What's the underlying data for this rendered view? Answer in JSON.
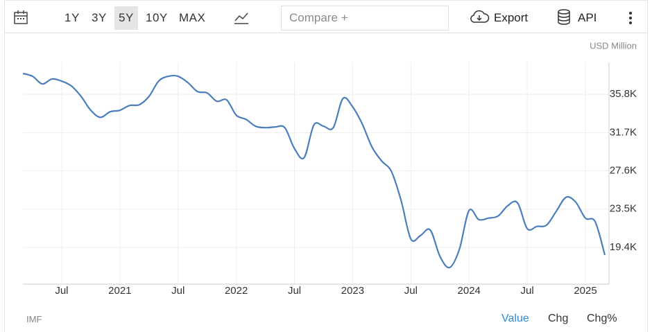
{
  "toolbar": {
    "ranges": [
      "1Y",
      "3Y",
      "5Y",
      "10Y",
      "MAX"
    ],
    "active_range_index": 2,
    "compare": "Compare +",
    "export": "Export",
    "api": "API"
  },
  "chart_data": {
    "type": "line",
    "unit": "USD Million",
    "categories": [
      null,
      null,
      null,
      null,
      "Jul",
      null,
      null,
      null,
      null,
      null,
      "2021",
      null,
      null,
      null,
      null,
      null,
      "Jul",
      null,
      null,
      null,
      null,
      null,
      "2022",
      null,
      null,
      null,
      null,
      null,
      "Jul",
      null,
      null,
      null,
      null,
      null,
      "2023",
      null,
      null,
      null,
      null,
      null,
      "Jul",
      null,
      null,
      null,
      null,
      null,
      "2024",
      null,
      null,
      null,
      null,
      null,
      "Jul",
      null,
      null,
      null,
      null,
      null,
      "2025",
      null,
      null
    ],
    "series": [
      {
        "name": "Value",
        "color": "#4a7ebb",
        "values": [
          38040,
          37740,
          36920,
          37450,
          37220,
          36700,
          35580,
          34090,
          33340,
          33940,
          34090,
          34610,
          34690,
          35580,
          37220,
          37740,
          37740,
          37070,
          36100,
          35950,
          35060,
          35210,
          33570,
          33120,
          32380,
          32230,
          32300,
          32230,
          29990,
          29020,
          32520,
          32380,
          32230,
          35360,
          34460,
          32600,
          30140,
          28650,
          27530,
          24400,
          20290,
          20670,
          21260,
          18430,
          17240,
          19180,
          23350,
          22380,
          22530,
          22760,
          23870,
          24170,
          21410,
          21640,
          21790,
          23280,
          24770,
          24250,
          22530,
          22160,
          18580
        ]
      }
    ],
    "ylim": [
      15450,
      39230
    ],
    "yticks": [
      {
        "value": 19400,
        "label": "19.4K"
      },
      {
        "value": 23500,
        "label": "23.5K"
      },
      {
        "value": 27600,
        "label": "27.6K"
      },
      {
        "value": 31700,
        "label": "31.7K"
      },
      {
        "value": 35800,
        "label": "35.8K"
      }
    ],
    "grid": true
  },
  "footer": {
    "source": "IMF",
    "tabs": [
      "Value",
      "Chg",
      "Chg%"
    ],
    "active_tab_index": 0
  }
}
